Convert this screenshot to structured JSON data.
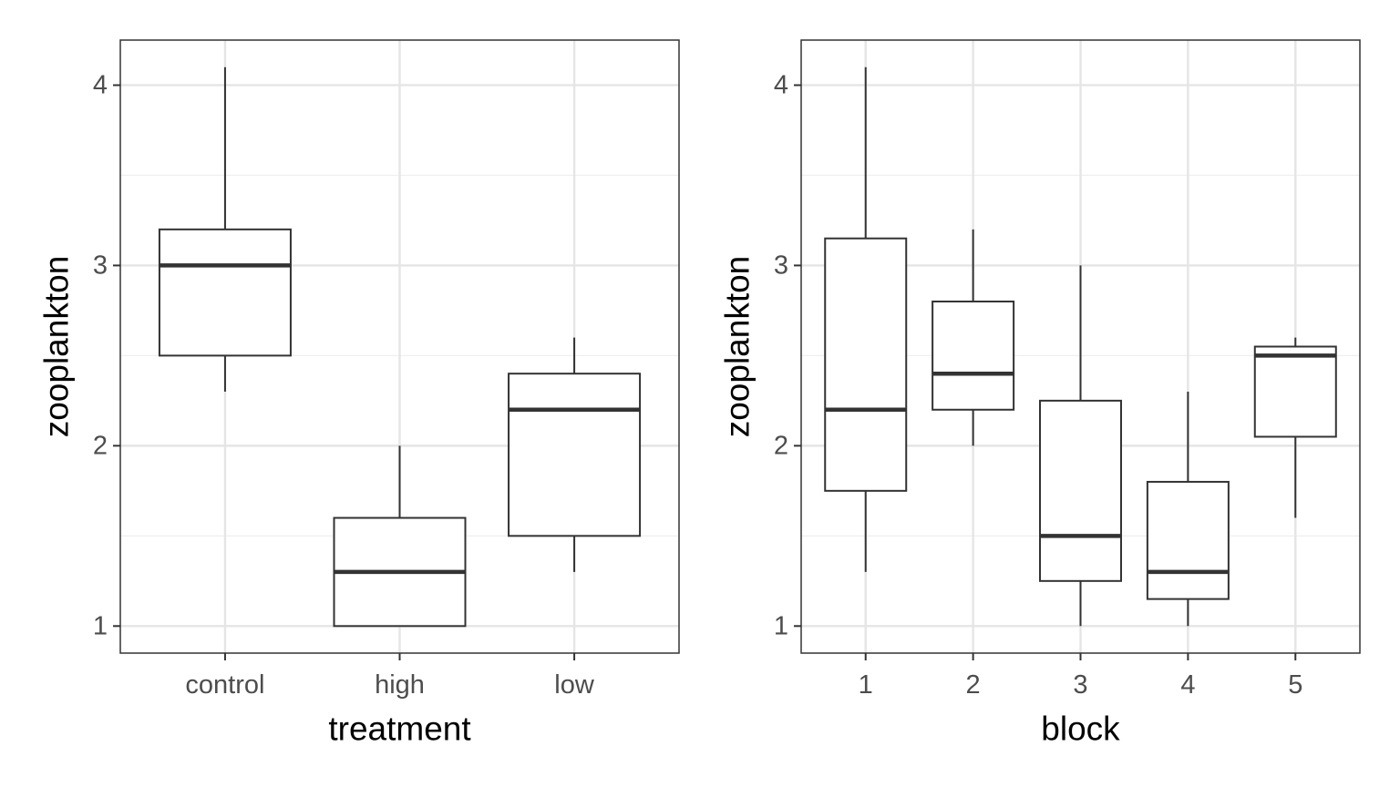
{
  "chart_data": [
    {
      "type": "boxplot",
      "xlabel": "treatment",
      "ylabel": "zooplankton",
      "ylim": [
        0.85,
        4.25
      ],
      "yticks": [
        1,
        2,
        3,
        4
      ],
      "categories": [
        "control",
        "high",
        "low"
      ],
      "boxes": [
        {
          "category": "control",
          "min": 2.3,
          "q1": 2.5,
          "median": 3.0,
          "q3": 3.2,
          "max": 4.1
        },
        {
          "category": "high",
          "min": 1.0,
          "q1": 1.0,
          "median": 1.3,
          "q3": 1.6,
          "max": 2.0
        },
        {
          "category": "low",
          "min": 1.3,
          "q1": 1.5,
          "median": 2.2,
          "q3": 2.4,
          "max": 2.6
        }
      ],
      "grid": true
    },
    {
      "type": "boxplot",
      "xlabel": "block",
      "ylabel": "zooplankton",
      "ylim": [
        0.85,
        4.25
      ],
      "yticks": [
        1,
        2,
        3,
        4
      ],
      "categories": [
        "1",
        "2",
        "3",
        "4",
        "5"
      ],
      "boxes": [
        {
          "category": "1",
          "min": 1.3,
          "q1": 1.75,
          "median": 2.2,
          "q3": 3.15,
          "max": 4.1
        },
        {
          "category": "2",
          "min": 2.0,
          "q1": 2.2,
          "median": 2.4,
          "q3": 2.8,
          "max": 3.2
        },
        {
          "category": "3",
          "min": 1.0,
          "q1": 1.25,
          "median": 1.5,
          "q3": 2.25,
          "max": 3.0
        },
        {
          "category": "4",
          "min": 1.0,
          "q1": 1.15,
          "median": 1.3,
          "q3": 1.8,
          "max": 2.3
        },
        {
          "category": "5",
          "min": 1.6,
          "q1": 2.05,
          "median": 2.5,
          "q3": 2.55,
          "max": 2.6
        }
      ],
      "grid": true
    }
  ]
}
